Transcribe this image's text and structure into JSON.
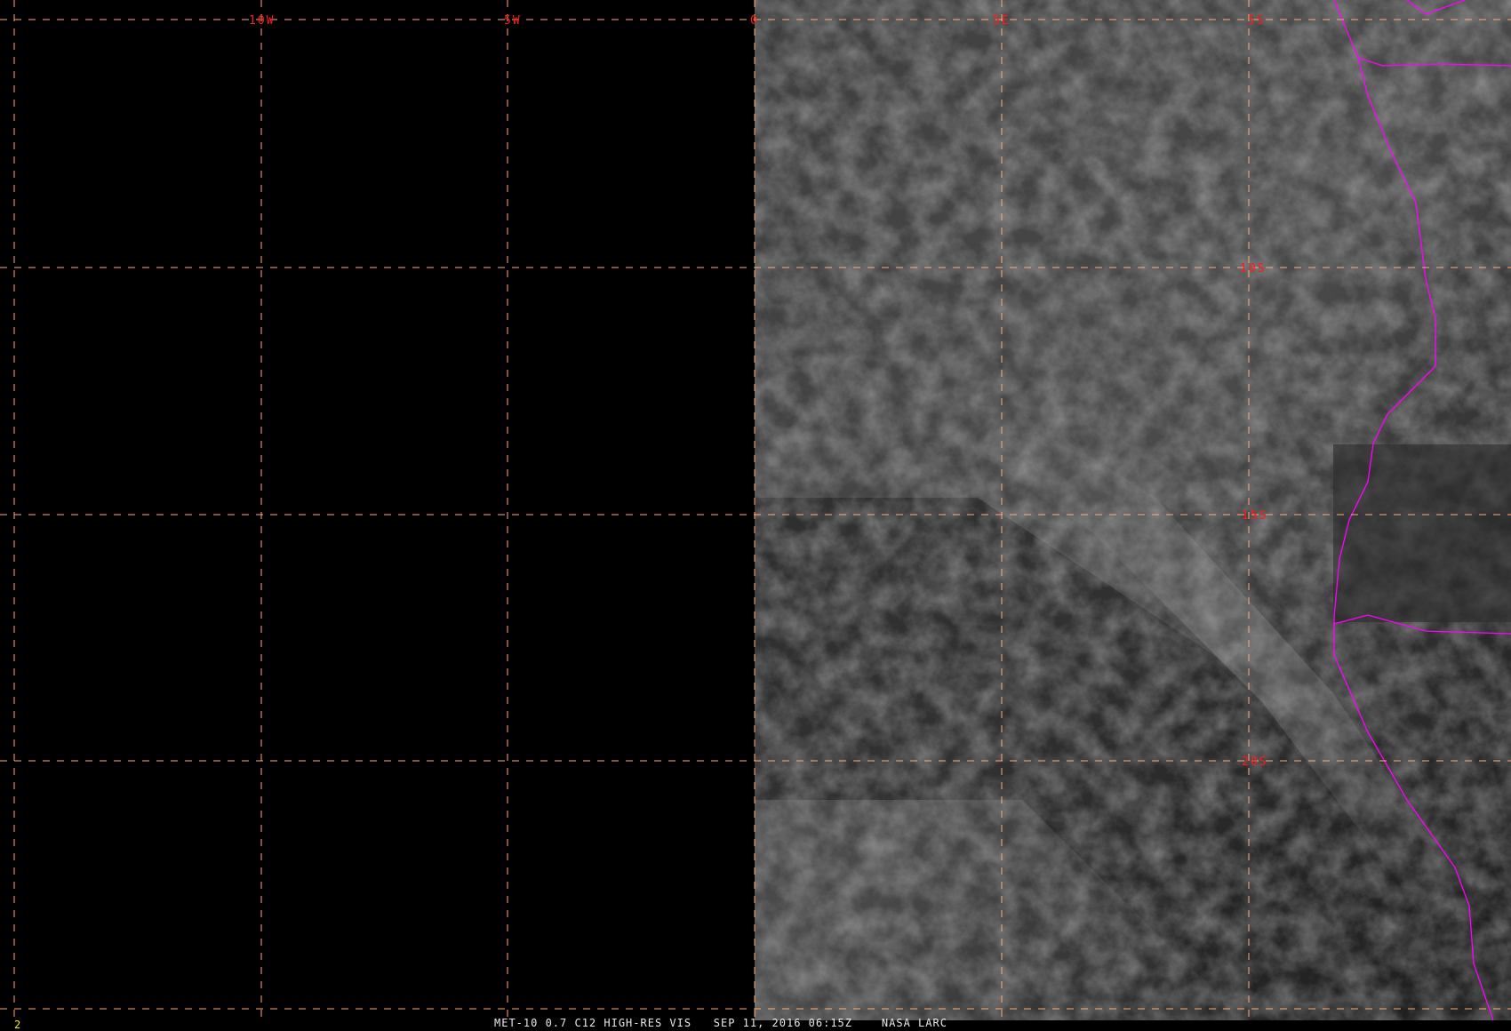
{
  "image": {
    "caption": "MET-10 0.7 C12 HIGH-RES VIS   SEP 11, 2016 06:15Z    NASA LARC",
    "frame_number": "2",
    "grid_color": "#ffaa77",
    "label_color": "#ff1a1a",
    "border_color": "#ff00ff",
    "longitude_labels": [
      "10W",
      "5W",
      "0",
      "5E"
    ],
    "latitude_labels": [
      "5S",
      "10S",
      "15S",
      "20S"
    ]
  }
}
